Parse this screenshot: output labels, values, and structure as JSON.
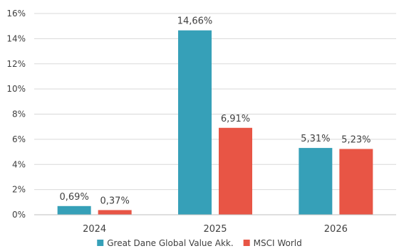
{
  "chart_data": {
    "type": "bar",
    "categories": [
      "2024",
      "2025",
      "2026"
    ],
    "series": [
      {
        "name": "Great Dane Global Value Akk.",
        "color": "#36A0B8",
        "values": [
          0.69,
          14.66,
          5.31
        ],
        "labels": [
          "0,69%",
          "14,66%",
          "5,31%"
        ]
      },
      {
        "name": "MSCI World",
        "color": "#E85545",
        "values": [
          0.37,
          6.91,
          5.23
        ],
        "labels": [
          "0,37%",
          "6,91%",
          "5,23%"
        ]
      }
    ],
    "ylim": [
      0,
      16
    ],
    "yticks": [
      0,
      2,
      4,
      6,
      8,
      10,
      12,
      14,
      16
    ],
    "ytick_labels": [
      "0%",
      "2%",
      "4%",
      "6%",
      "8%",
      "10%",
      "12%",
      "14%",
      "16%"
    ],
    "grid": true,
    "legend": "bottom",
    "title": "",
    "xlabel": "",
    "ylabel": ""
  }
}
